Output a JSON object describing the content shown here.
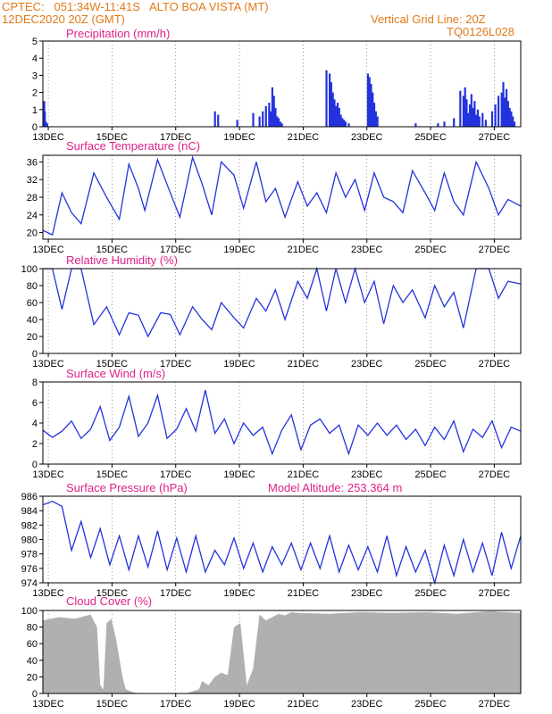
{
  "header": {
    "line1_left": "CPTEC:   051:34W-11:41S   ALTO BOA VISTA (MT)",
    "line2_left": "12DEC2020 20Z (GMT)",
    "line2_right": "Vertical Grid Line: 20Z",
    "line3_right": "TQ0126L028"
  },
  "colors": {
    "line": "#2233dd",
    "bar": "#2233dd",
    "cloud": "#b0b0b0",
    "title": "#e0218a",
    "header": "#e07a18"
  },
  "x_tick_labels": [
    "13DEC",
    "15DEC",
    "17DEC",
    "19DEC",
    "21DEC",
    "23DEC",
    "25DEC",
    "27DEC"
  ],
  "chart_data": [
    {
      "type": "bar",
      "title": "Precipitation (mm/h)",
      "ylim": [
        0,
        5
      ],
      "yticks": [
        0,
        1,
        2,
        3,
        4,
        5
      ],
      "x_unit": "day offset from 12DEC2020 20Z",
      "values_x": [
        0.02,
        0.04,
        0.06,
        0.09,
        0.13,
        5.4,
        5.5,
        6.1,
        6.6,
        6.8,
        6.9,
        7.0,
        7.1,
        7.15,
        7.2,
        7.25,
        7.3,
        7.35,
        7.4,
        7.45,
        7.5,
        8.9,
        9.0,
        9.05,
        9.1,
        9.15,
        9.2,
        9.25,
        9.3,
        9.35,
        9.4,
        9.45,
        9.5,
        9.6,
        10.2,
        10.25,
        10.3,
        10.35,
        10.4,
        10.45,
        10.5,
        11.7,
        12.4,
        12.6,
        12.9,
        13.1,
        13.2,
        13.25,
        13.3,
        13.35,
        13.4,
        13.45,
        13.5,
        13.55,
        13.6,
        13.65,
        13.7,
        13.8,
        13.9,
        14.1,
        14.2,
        14.3,
        14.4,
        14.45,
        14.5,
        14.55,
        14.6,
        14.65,
        14.7,
        14.75,
        14.8
      ],
      "values_y": [
        1.4,
        1.5,
        0.9,
        0.3,
        0.2,
        0.9,
        0.7,
        0.4,
        0.8,
        0.6,
        0.9,
        1.2,
        1.4,
        0.9,
        2.3,
        1.8,
        1.1,
        0.6,
        0.5,
        0.3,
        0.2,
        3.3,
        3.1,
        2.6,
        2.0,
        1.6,
        1.2,
        1.4,
        1.1,
        0.7,
        0.5,
        0.4,
        0.3,
        0.2,
        3.1,
        2.9,
        2.5,
        2.0,
        1.4,
        0.9,
        0.6,
        0.2,
        0.2,
        0.3,
        0.5,
        2.1,
        1.8,
        2.3,
        1.6,
        0.8,
        1.3,
        1.9,
        1.1,
        1.5,
        0.7,
        1.0,
        0.6,
        0.8,
        0.4,
        0.9,
        1.3,
        1.8,
        2.0,
        2.6,
        1.7,
        2.2,
        1.5,
        1.1,
        0.9,
        0.6,
        0.3
      ]
    },
    {
      "type": "line",
      "title": "Surface Temperature (nC)",
      "ylim": [
        18.5,
        37.5
      ],
      "yticks": [
        20,
        24,
        28,
        32,
        36
      ],
      "x": [
        0,
        0.3,
        0.6,
        0.9,
        1.2,
        1.6,
        2.0,
        2.4,
        2.7,
        3.0,
        3.2,
        3.6,
        4.0,
        4.3,
        4.7,
        5.0,
        5.3,
        5.6,
        6.0,
        6.3,
        6.7,
        7.0,
        7.3,
        7.6,
        8.0,
        8.3,
        8.6,
        8.9,
        9.2,
        9.5,
        9.8,
        10.1,
        10.4,
        10.7,
        11.0,
        11.3,
        11.6,
        12.0,
        12.3,
        12.6,
        12.9,
        13.2,
        13.6,
        14.0,
        14.3,
        14.6,
        15.0
      ],
      "y": [
        20.5,
        19.5,
        29,
        24.5,
        22,
        33.5,
        28,
        23,
        35.5,
        30,
        25,
        36.5,
        29,
        23.5,
        37,
        31,
        24,
        36,
        33,
        25.5,
        36,
        27,
        30,
        23.5,
        31.5,
        26,
        29,
        24.5,
        33.5,
        28,
        32,
        25,
        33.5,
        28,
        27,
        24.5,
        34,
        29,
        25,
        33.5,
        27,
        24,
        36,
        30,
        24,
        27.5,
        26
      ]
    },
    {
      "type": "line",
      "title": "Relative Humidity (%)",
      "ylim": [
        0,
        100
      ],
      "yticks": [
        0,
        20,
        40,
        60,
        80,
        100
      ],
      "x": [
        0,
        0.3,
        0.6,
        0.9,
        1.2,
        1.6,
        2.0,
        2.4,
        2.7,
        3.0,
        3.3,
        3.7,
        4.0,
        4.3,
        4.7,
        5.0,
        5.3,
        5.6,
        6.0,
        6.3,
        6.7,
        7.0,
        7.3,
        7.6,
        8.0,
        8.3,
        8.6,
        8.9,
        9.2,
        9.5,
        9.8,
        10.1,
        10.4,
        10.7,
        11.0,
        11.3,
        11.6,
        12.0,
        12.3,
        12.6,
        12.9,
        13.2,
        13.6,
        14.0,
        14.3,
        14.6,
        15.0
      ],
      "y": [
        100,
        100,
        52,
        100,
        100,
        34,
        55,
        22,
        48,
        45,
        20,
        48,
        46,
        22,
        55,
        40,
        28,
        60,
        42,
        30,
        65,
        50,
        75,
        40,
        85,
        65,
        100,
        50,
        100,
        60,
        100,
        60,
        85,
        35,
        80,
        60,
        75,
        42,
        80,
        55,
        72,
        30,
        100,
        100,
        65,
        85,
        82
      ]
    },
    {
      "type": "line",
      "title": "Surface Wind (m/s)",
      "ylim": [
        0,
        8
      ],
      "yticks": [
        0,
        2,
        4,
        6,
        8
      ],
      "x": [
        0,
        0.3,
        0.6,
        0.9,
        1.2,
        1.5,
        1.8,
        2.1,
        2.4,
        2.7,
        3.0,
        3.3,
        3.6,
        3.9,
        4.2,
        4.5,
        4.8,
        5.1,
        5.4,
        5.7,
        6.0,
        6.3,
        6.6,
        6.9,
        7.2,
        7.5,
        7.8,
        8.1,
        8.4,
        8.7,
        9.0,
        9.3,
        9.6,
        9.9,
        10.2,
        10.5,
        10.8,
        11.1,
        11.4,
        11.7,
        12.0,
        12.3,
        12.6,
        12.9,
        13.2,
        13.5,
        13.8,
        14.1,
        14.4,
        14.7,
        15.0
      ],
      "y": [
        3.3,
        2.6,
        3.2,
        4.2,
        2.5,
        3.4,
        5.6,
        2.3,
        3.6,
        6.6,
        2.7,
        4.0,
        6.7,
        2.5,
        3.4,
        5.4,
        3.2,
        7.2,
        3.0,
        4.4,
        2.0,
        4.0,
        2.8,
        3.6,
        1.0,
        3.3,
        4.8,
        1.4,
        3.8,
        4.4,
        3.0,
        3.8,
        1.0,
        3.8,
        2.8,
        4.0,
        2.8,
        3.8,
        2.4,
        3.4,
        1.8,
        3.6,
        2.4,
        4.2,
        1.2,
        3.4,
        2.6,
        4.2,
        1.6,
        3.6,
        3.2
      ]
    },
    {
      "type": "line",
      "title": "Surface Pressure (hPa)",
      "annotation": "Model Altitude: 253.364 m",
      "ylim": [
        974,
        986
      ],
      "yticks": [
        974,
        976,
        978,
        980,
        982,
        984,
        986
      ],
      "x": [
        0,
        0.3,
        0.6,
        0.9,
        1.2,
        1.5,
        1.8,
        2.1,
        2.4,
        2.7,
        3.0,
        3.3,
        3.6,
        3.9,
        4.2,
        4.5,
        4.8,
        5.1,
        5.4,
        5.7,
        6.0,
        6.3,
        6.6,
        6.9,
        7.2,
        7.5,
        7.8,
        8.1,
        8.4,
        8.7,
        9.0,
        9.3,
        9.6,
        9.9,
        10.2,
        10.5,
        10.8,
        11.1,
        11.4,
        11.7,
        12.0,
        12.3,
        12.6,
        12.9,
        13.2,
        13.5,
        13.8,
        14.1,
        14.4,
        14.7,
        15.0
      ],
      "y": [
        984.8,
        985.3,
        984.6,
        978.5,
        982.5,
        977.5,
        981.5,
        976.5,
        980.5,
        975.8,
        980.5,
        976.2,
        981.2,
        975.8,
        980.2,
        975.5,
        980.5,
        975.5,
        978.5,
        976.5,
        980.2,
        976.0,
        979.5,
        975.5,
        979.0,
        976.5,
        979.5,
        975.8,
        979.5,
        976.0,
        980.5,
        975.5,
        979.2,
        975.8,
        979.0,
        975.5,
        980.5,
        975.0,
        979.0,
        975.5,
        978.5,
        974.0,
        979.2,
        975.0,
        980.0,
        975.5,
        979.5,
        975.0,
        981.0,
        976.0,
        980.5
      ]
    },
    {
      "type": "area",
      "title": "Cloud Cover (%)",
      "ylim": [
        0,
        100
      ],
      "yticks": [
        0,
        20,
        40,
        60,
        80,
        100
      ],
      "x": [
        0,
        0.5,
        1.0,
        1.5,
        1.7,
        1.8,
        1.9,
        2.0,
        2.15,
        2.3,
        2.5,
        2.6,
        2.8,
        3.0,
        3.5,
        4.0,
        4.5,
        4.9,
        5.0,
        5.2,
        5.4,
        5.6,
        5.8,
        6.0,
        6.2,
        6.4,
        6.6,
        6.8,
        7.0,
        7.2,
        7.4,
        7.6,
        7.8,
        8.0,
        9.0,
        10.0,
        11.0,
        12.0,
        13.0,
        14.0,
        15.0
      ],
      "y": [
        88,
        92,
        90,
        95,
        80,
        10,
        5,
        85,
        90,
        65,
        20,
        5,
        2,
        0,
        0,
        0,
        0,
        5,
        15,
        10,
        20,
        25,
        22,
        80,
        85,
        10,
        30,
        95,
        88,
        92,
        96,
        94,
        98,
        97,
        96,
        98,
        97,
        98,
        96,
        99,
        97
      ]
    }
  ]
}
